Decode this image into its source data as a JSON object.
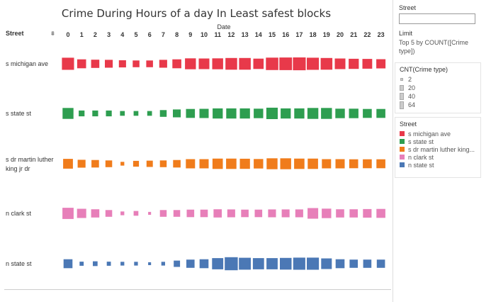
{
  "title": "Crime During Hours of a day In Least safest blocks",
  "row_header": "Street",
  "column_header": "Date",
  "filter_icon": "filter-icon",
  "chart_data": {
    "type": "square-mark-matrix",
    "title": "Crime During Hours of a day In Least safest blocks",
    "xlabel": "Date",
    "ylabel": "Street",
    "x": [
      0,
      1,
      2,
      3,
      4,
      5,
      6,
      7,
      8,
      9,
      10,
      11,
      12,
      13,
      14,
      15,
      16,
      17,
      18,
      19,
      20,
      21,
      22,
      23
    ],
    "size_measure": "CNT(Crime type)",
    "series": [
      {
        "name": "s michigan ave",
        "color": "#e8394a",
        "values": [
          52,
          28,
          24,
          22,
          18,
          16,
          16,
          22,
          28,
          42,
          40,
          42,
          48,
          48,
          38,
          54,
          56,
          58,
          52,
          48,
          40,
          36,
          34,
          30
        ],
        "label_lines": [
          "s michigan ave"
        ]
      },
      {
        "name": "s state st",
        "color": "#2e9e50",
        "values": [
          42,
          12,
          12,
          12,
          8,
          8,
          8,
          16,
          22,
          28,
          30,
          36,
          36,
          36,
          32,
          46,
          36,
          36,
          42,
          42,
          32,
          32,
          28,
          28
        ],
        "label_lines": [
          "s state st"
        ]
      },
      {
        "name": "s dr martin luther king jr dr",
        "color": "#f07c1b",
        "values": [
          34,
          22,
          20,
          16,
          5,
          12,
          14,
          16,
          20,
          30,
          30,
          38,
          38,
          36,
          32,
          42,
          42,
          38,
          38,
          30,
          30,
          28,
          28,
          28
        ],
        "label_lines": [
          "s dr martin luther",
          "king jr dr"
        ]
      },
      {
        "name": "n clark st",
        "color": "#e77fb9",
        "values": [
          44,
          30,
          24,
          16,
          5,
          8,
          3,
          16,
          16,
          20,
          20,
          24,
          22,
          20,
          20,
          22,
          22,
          22,
          40,
          32,
          24,
          24,
          26,
          28
        ],
        "label_lines": [
          "n clark st"
        ]
      },
      {
        "name": "n state st",
        "color": "#4b78b5",
        "values": [
          28,
          6,
          8,
          6,
          5,
          5,
          3,
          5,
          14,
          24,
          28,
          44,
          60,
          50,
          44,
          44,
          48,
          52,
          52,
          40,
          28,
          24,
          24,
          24
        ],
        "label_lines": [
          "n state st"
        ]
      }
    ]
  },
  "filter_panel": {
    "title": "Street",
    "input_value": "",
    "limit_label": "Limit",
    "limit_desc": "Top 5 by COUNT([Crime type])"
  },
  "size_legend": {
    "title": "CNT(Crime type)",
    "items": [
      {
        "label": "2",
        "value": 2
      },
      {
        "label": "20",
        "value": 20
      },
      {
        "label": "40",
        "value": 40
      },
      {
        "label": "64",
        "value": 64
      }
    ]
  },
  "color_legend": {
    "title": "Street",
    "items": [
      {
        "label": "s michigan ave",
        "color": "#e8394a"
      },
      {
        "label": "s state st",
        "color": "#2e9e50"
      },
      {
        "label": "s dr martin luther king...",
        "color": "#f07c1b"
      },
      {
        "label": "n clark st",
        "color": "#e77fb9"
      },
      {
        "label": "n state st",
        "color": "#4b78b5"
      }
    ]
  }
}
